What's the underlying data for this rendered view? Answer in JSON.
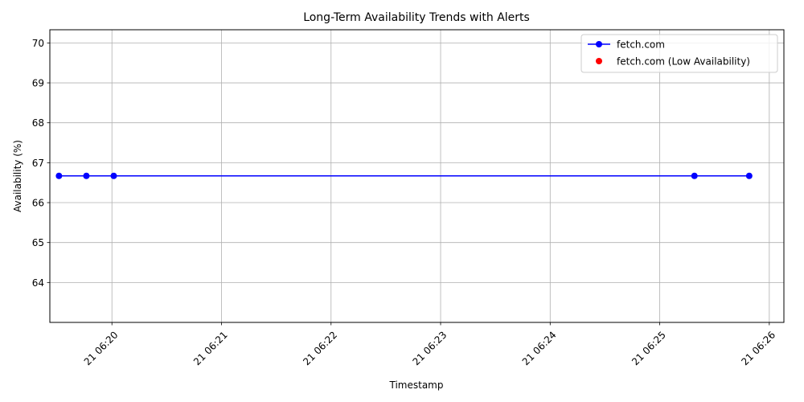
{
  "chart_data": {
    "type": "line",
    "title": "Long-Term Availability Trends with Alerts",
    "xlabel": "Timestamp",
    "ylabel": "Availability (%)",
    "xlim": [
      "06:19:26",
      "06:26:08"
    ],
    "ylim": [
      63,
      70.33
    ],
    "grid": true,
    "legend_position": "top-right",
    "x_ticks": [
      {
        "value": "06:20:00",
        "label": "21 06:20"
      },
      {
        "value": "06:21:00",
        "label": "21 06:21"
      },
      {
        "value": "06:22:00",
        "label": "21 06:22"
      },
      {
        "value": "06:23:00",
        "label": "21 06:23"
      },
      {
        "value": "06:24:00",
        "label": "21 06:24"
      },
      {
        "value": "06:25:00",
        "label": "21 06:25"
      },
      {
        "value": "06:26:00",
        "label": "21 06:26"
      }
    ],
    "y_ticks": [
      {
        "value": 64,
        "label": "64"
      },
      {
        "value": 65,
        "label": "65"
      },
      {
        "value": 66,
        "label": "66"
      },
      {
        "value": 67,
        "label": "67"
      },
      {
        "value": 68,
        "label": "68"
      },
      {
        "value": 69,
        "label": "69"
      },
      {
        "value": 70,
        "label": "70"
      }
    ],
    "series": [
      {
        "name": "fetch.com",
        "kind": "line",
        "color": "#0000ff",
        "marker": "circle",
        "points": [
          {
            "x": "06:19:31",
            "y": 66.67
          },
          {
            "x": "06:19:46",
            "y": 66.67
          },
          {
            "x": "06:20:01",
            "y": 66.67
          },
          {
            "x": "06:25:19",
            "y": 66.67
          },
          {
            "x": "06:25:49",
            "y": 66.67
          }
        ]
      },
      {
        "name": "fetch.com (Low Availability)",
        "kind": "scatter",
        "color": "#ff0000",
        "marker": "circle",
        "points": []
      }
    ]
  }
}
